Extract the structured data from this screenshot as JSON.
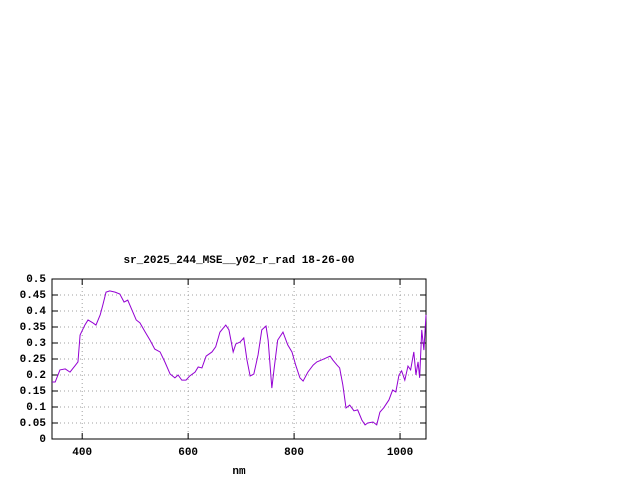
{
  "chart_data": {
    "type": "line",
    "title": "sr_2025_244_MSE__y02_r_rad 18-26-00",
    "x_label": "nm",
    "x": [
      343,
      349,
      358,
      368,
      377,
      386,
      392,
      396,
      405,
      411,
      420,
      426,
      434,
      439,
      445,
      452,
      462,
      471,
      479,
      486,
      494,
      502,
      509,
      519,
      528,
      537,
      547,
      556,
      566,
      575,
      581,
      588,
      596,
      603,
      613,
      619,
      626,
      634,
      645,
      652,
      660,
      671,
      677,
      685,
      690,
      698,
      705,
      711,
      717,
      724,
      732,
      739,
      747,
      751,
      758,
      762,
      769,
      779,
      788,
      796,
      803,
      811,
      817,
      826,
      836,
      843,
      852,
      860,
      868,
      873,
      881,
      886,
      892,
      898,
      905,
      913,
      920,
      928,
      934,
      939,
      949,
      956,
      962,
      969,
      979,
      986,
      992,
      998,
      1003,
      1009,
      1015,
      1020,
      1026,
      1030,
      1034,
      1037,
      1041,
      1045,
      1049
    ],
    "series": [
      {
        "color": "#9400d3",
        "values": [
          0.178,
          0.178,
          0.216,
          0.219,
          0.209,
          0.228,
          0.241,
          0.325,
          0.356,
          0.372,
          0.363,
          0.356,
          0.388,
          0.419,
          0.459,
          0.463,
          0.459,
          0.453,
          0.428,
          0.434,
          0.403,
          0.372,
          0.363,
          0.334,
          0.309,
          0.281,
          0.272,
          0.241,
          0.203,
          0.191,
          0.2,
          0.184,
          0.184,
          0.197,
          0.209,
          0.225,
          0.222,
          0.259,
          0.272,
          0.288,
          0.334,
          0.356,
          0.341,
          0.272,
          0.297,
          0.303,
          0.316,
          0.247,
          0.197,
          0.203,
          0.263,
          0.341,
          0.353,
          0.309,
          0.159,
          0.216,
          0.309,
          0.334,
          0.294,
          0.272,
          0.231,
          0.191,
          0.181,
          0.209,
          0.231,
          0.241,
          0.247,
          0.253,
          0.259,
          0.247,
          0.231,
          0.222,
          0.169,
          0.097,
          0.106,
          0.088,
          0.091,
          0.059,
          0.044,
          0.05,
          0.053,
          0.044,
          0.084,
          0.097,
          0.122,
          0.153,
          0.147,
          0.2,
          0.213,
          0.184,
          0.228,
          0.216,
          0.272,
          0.2,
          0.241,
          0.191,
          0.341,
          0.278,
          0.388
        ]
      }
    ],
    "xlim": [
      343,
      1049
    ],
    "xticks": [
      400,
      600,
      800,
      1000
    ],
    "ylim": [
      0,
      0.5
    ],
    "yticks": [
      0,
      0.05,
      0.1,
      0.15,
      0.2,
      0.25,
      0.3,
      0.35,
      0.4,
      0.45,
      0.5
    ],
    "grid": true
  }
}
